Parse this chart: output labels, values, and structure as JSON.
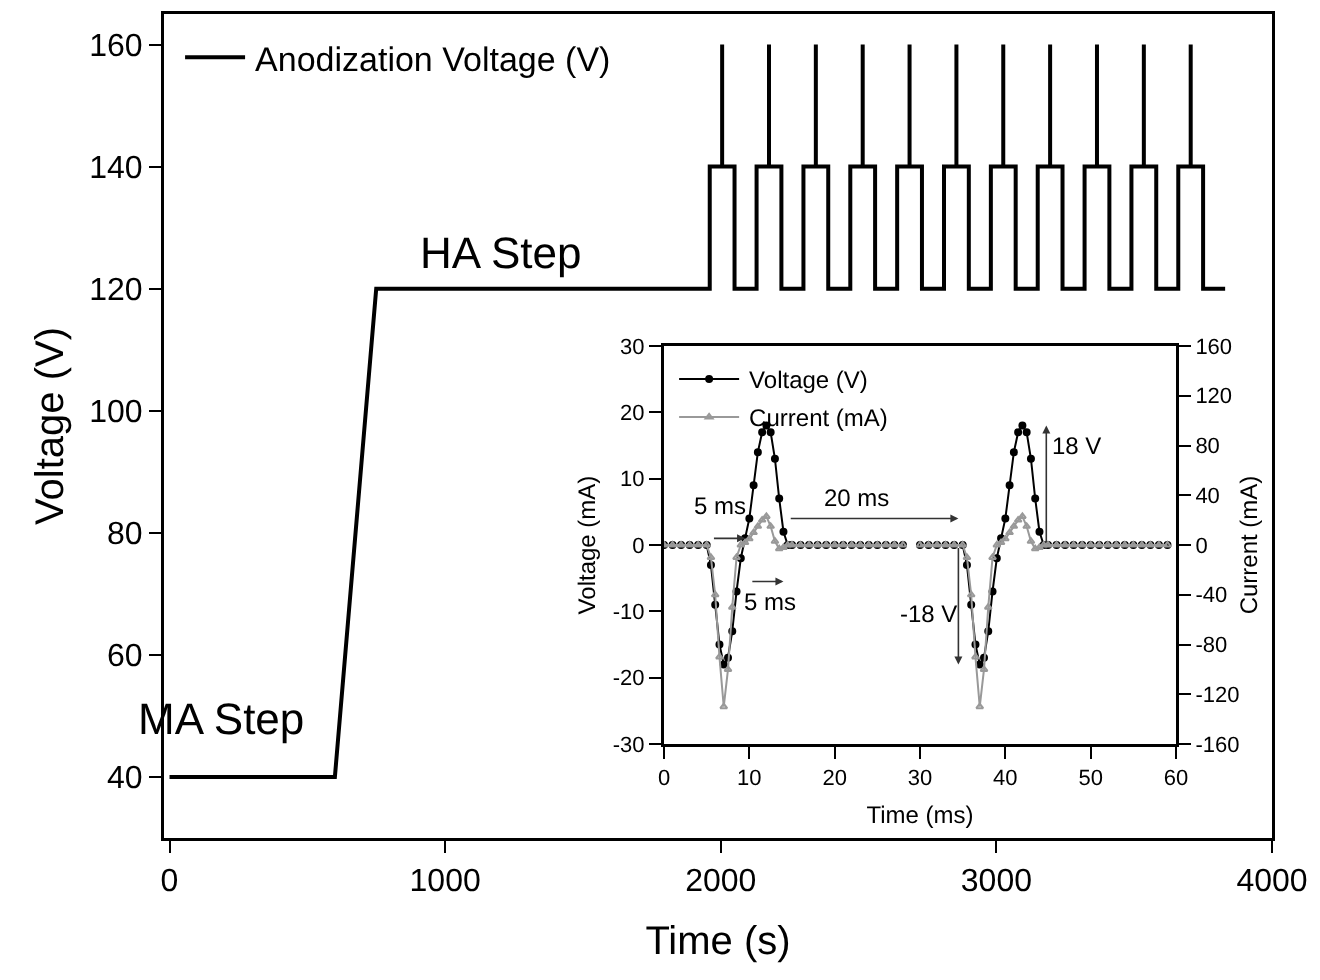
{
  "chart_data": [
    {
      "type": "line",
      "xlabel": "Time (s)",
      "ylabel": "Voltage (V)",
      "x": [
        0,
        600,
        750,
        1960,
        1960,
        2005,
        2005,
        2005,
        2050,
        2050,
        2130,
        2130,
        2175,
        2175,
        2175,
        2220,
        2220,
        2300,
        2300,
        2345,
        2345,
        2345,
        2390,
        2390,
        2470,
        2470,
        2515,
        2515,
        2515,
        2560,
        2560,
        2640,
        2640,
        2685,
        2685,
        2685,
        2730,
        2730,
        2810,
        2810,
        2855,
        2855,
        2855,
        2900,
        2900,
        2980,
        2980,
        3025,
        3025,
        3025,
        3070,
        3070,
        3150,
        3150,
        3195,
        3195,
        3195,
        3240,
        3240,
        3320,
        3320,
        3365,
        3365,
        3365,
        3410,
        3410,
        3490,
        3490,
        3535,
        3535,
        3535,
        3580,
        3580,
        3660,
        3660,
        3705,
        3705,
        3705,
        3750,
        3750,
        3830
      ],
      "series": [
        {
          "name": "Anodization Voltage (V)",
          "color": "#000000",
          "values": [
            40,
            40,
            120,
            120,
            140,
            140,
            160,
            140,
            140,
            120,
            120,
            140,
            140,
            160,
            140,
            140,
            120,
            120,
            140,
            140,
            160,
            140,
            140,
            120,
            120,
            140,
            140,
            160,
            140,
            140,
            120,
            120,
            140,
            140,
            160,
            140,
            140,
            120,
            120,
            140,
            140,
            160,
            140,
            140,
            120,
            120,
            140,
            140,
            160,
            140,
            140,
            120,
            120,
            140,
            140,
            160,
            140,
            140,
            120,
            120,
            140,
            140,
            160,
            140,
            140,
            120,
            120,
            140,
            140,
            160,
            140,
            140,
            120,
            120,
            140,
            140,
            160,
            140,
            140,
            120,
            120
          ]
        }
      ],
      "xlim": [
        -20,
        4000
      ],
      "ylim": [
        30,
        165
      ],
      "xticks": [
        0,
        1000,
        2000,
        3000,
        4000
      ],
      "yticks": [
        40,
        60,
        80,
        100,
        120,
        140,
        160
      ],
      "grid": false,
      "legend": "top left",
      "marker": "none",
      "line_style": "solid",
      "annotations": [
        "MA Step",
        "HA Step"
      ]
    },
    {
      "type": "line",
      "xlabel": "Time (ms)",
      "ylabel": "Voltage (mA)",
      "y2label": "Current (mA)",
      "x": [
        0,
        1,
        2,
        3,
        4,
        5,
        5.5,
        6,
        6.5,
        7,
        7.5,
        8,
        8.5,
        9,
        9.5,
        10,
        10.5,
        11,
        11.5,
        12,
        12.5,
        13,
        13.5,
        14,
        14.5,
        15,
        16,
        17,
        18,
        19,
        20,
        21,
        22,
        23,
        24,
        25,
        26,
        27,
        28,
        29,
        30,
        31,
        32,
        33,
        34,
        35,
        35.5,
        36,
        36.5,
        37,
        37.5,
        38,
        38.5,
        39,
        39.5,
        40,
        40.5,
        41,
        41.5,
        42,
        42.5,
        43,
        43.5,
        44,
        44.5,
        45,
        46,
        47,
        48,
        49,
        50,
        51,
        52,
        53,
        54,
        55,
        56,
        57,
        58,
        59
      ],
      "series": [
        {
          "name": "Voltage (V)",
          "color": "#000000",
          "marker": "circle",
          "values": [
            0,
            0,
            0,
            0,
            0,
            0,
            -3,
            -9,
            -15,
            -18,
            -17,
            -13,
            -7,
            -2,
            1,
            4,
            9,
            14,
            17,
            18,
            17,
            13,
            7,
            2,
            0,
            0,
            0,
            0,
            0,
            0,
            0,
            0,
            0,
            0,
            0,
            0,
            0,
            0,
            0,
            null,
            0,
            0,
            0,
            0,
            0,
            0,
            -3,
            -9,
            -15,
            -18,
            -17,
            -13,
            -7,
            -2,
            1,
            4,
            9,
            14,
            17,
            18,
            17,
            13,
            7,
            2,
            0,
            0,
            0,
            0,
            0,
            0,
            0,
            0,
            0,
            0,
            0,
            0,
            0,
            0,
            0,
            0
          ]
        },
        {
          "name": "Current (mA)",
          "color": "#999999",
          "marker": "triangle",
          "axis": "y2",
          "values": [
            0,
            0,
            0,
            0,
            0,
            0,
            -10,
            -40,
            -90,
            -130,
            -100,
            -50,
            -10,
            0,
            2,
            5,
            10,
            15,
            20,
            23,
            15,
            3,
            -3,
            -2,
            0,
            0,
            0,
            0,
            0,
            0,
            0,
            0,
            0,
            0,
            0,
            0,
            0,
            0,
            0,
            null,
            0,
            0,
            0,
            0,
            0,
            0,
            -10,
            -40,
            -90,
            -130,
            -100,
            -50,
            -10,
            0,
            2,
            5,
            10,
            15,
            20,
            23,
            15,
            3,
            -3,
            -2,
            0,
            0,
            0,
            0,
            0,
            0,
            0,
            0,
            0,
            0,
            0,
            0,
            0,
            0,
            0,
            0
          ]
        }
      ],
      "xlim": [
        0,
        60
      ],
      "ylim": [
        -30,
        30
      ],
      "y2lim": [
        -160,
        160
      ],
      "xticks": [
        0,
        10,
        20,
        30,
        40,
        50,
        60
      ],
      "yticks": [
        -30,
        -20,
        -10,
        0,
        10,
        20,
        30
      ],
      "y2ticks": [
        -160,
        -120,
        -80,
        -40,
        0,
        40,
        80,
        120,
        160
      ],
      "grid": false,
      "legend": "top left",
      "line_style": "solid",
      "annotations": [
        "5 ms",
        "5 ms",
        "20 ms",
        "18 V",
        "-18 V"
      ]
    }
  ]
}
